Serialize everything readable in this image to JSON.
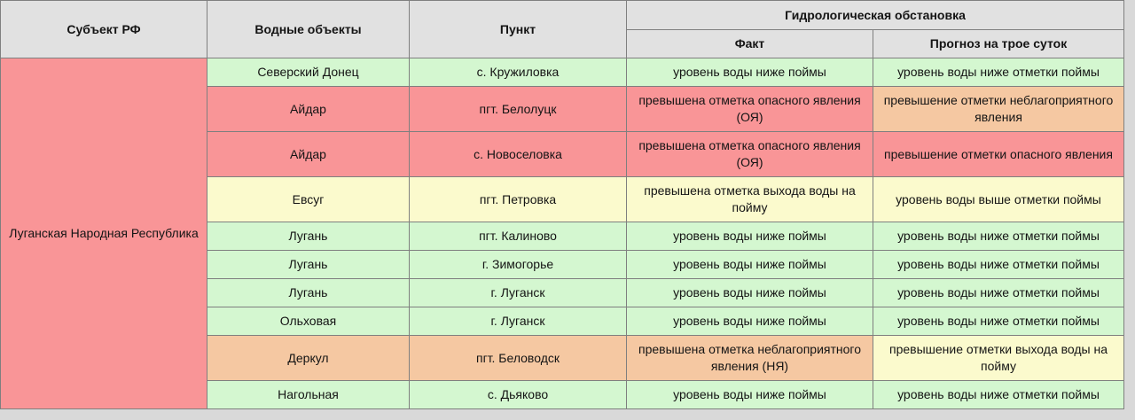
{
  "page": {
    "background": "#d9d9d9"
  },
  "table": {
    "columns": {
      "subject": "Субъект РФ",
      "water_objects": "Водные объекты",
      "point": "Пункт",
      "hydro": "Гидрологическая обстановка",
      "fact": "Факт",
      "forecast": "Прогноз на трое суток"
    },
    "region": {
      "label": "Луганская Народная Республика",
      "color_key": "red"
    },
    "palette": {
      "red": "#f99597",
      "green": "#d4f7d0",
      "yellow": "#fbfacd",
      "orange": "#f5c8a2",
      "header": "#e1e1e1",
      "border": "#7f7f7f"
    },
    "rows": [
      {
        "water_object": "Северский Донец",
        "point": "с. Кружиловка",
        "fact": "уровень воды ниже поймы",
        "forecast": "уровень воды ниже отметки поймы",
        "base_color": "green",
        "fact_color": "green",
        "forecast_color": "green"
      },
      {
        "water_object": "Айдар",
        "point": "пгт. Белолуцк",
        "fact": "превышена отметка опасного явления (ОЯ)",
        "forecast": "превышение отметки неблагоприятного явления",
        "base_color": "red",
        "fact_color": "red",
        "forecast_color": "orange"
      },
      {
        "water_object": "Айдар",
        "point": "с. Новоселовка",
        "fact": "превышена отметка опасного явления (ОЯ)",
        "forecast": "превышение отметки опасного явления",
        "base_color": "red",
        "fact_color": "red",
        "forecast_color": "red"
      },
      {
        "water_object": "Евсуг",
        "point": "пгт. Петровка",
        "fact": "превышена отметка выхода воды на пойму",
        "forecast": "уровень воды выше отметки поймы",
        "base_color": "yellow",
        "fact_color": "yellow",
        "forecast_color": "yellow"
      },
      {
        "water_object": "Лугань",
        "point": "пгт. Калиново",
        "fact": "уровень воды ниже поймы",
        "forecast": "уровень воды ниже отметки поймы",
        "base_color": "green",
        "fact_color": "green",
        "forecast_color": "green"
      },
      {
        "water_object": "Лугань",
        "point": "г. Зимогорье",
        "fact": "уровень воды ниже поймы",
        "forecast": "уровень воды ниже отметки поймы",
        "base_color": "green",
        "fact_color": "green",
        "forecast_color": "green"
      },
      {
        "water_object": "Лугань",
        "point": "г. Луганск",
        "fact": "уровень воды ниже поймы",
        "forecast": "уровень воды ниже отметки поймы",
        "base_color": "green",
        "fact_color": "green",
        "forecast_color": "green"
      },
      {
        "water_object": "Ольховая",
        "point": "г. Луганск",
        "fact": "уровень воды ниже поймы",
        "forecast": "уровень воды ниже отметки поймы",
        "base_color": "green",
        "fact_color": "green",
        "forecast_color": "green"
      },
      {
        "water_object": "Деркул",
        "point": "пгт. Беловодск",
        "fact": "превышена отметка неблагоприятного явления (НЯ)",
        "forecast": "превышение отметки выхода воды на пойму",
        "base_color": "orange",
        "fact_color": "orange",
        "forecast_color": "yellow"
      },
      {
        "water_object": "Нагольная",
        "point": "с. Дьяково",
        "fact": "уровень воды ниже поймы",
        "forecast": "уровень воды ниже отметки поймы",
        "base_color": "green",
        "fact_color": "green",
        "forecast_color": "green"
      }
    ]
  }
}
